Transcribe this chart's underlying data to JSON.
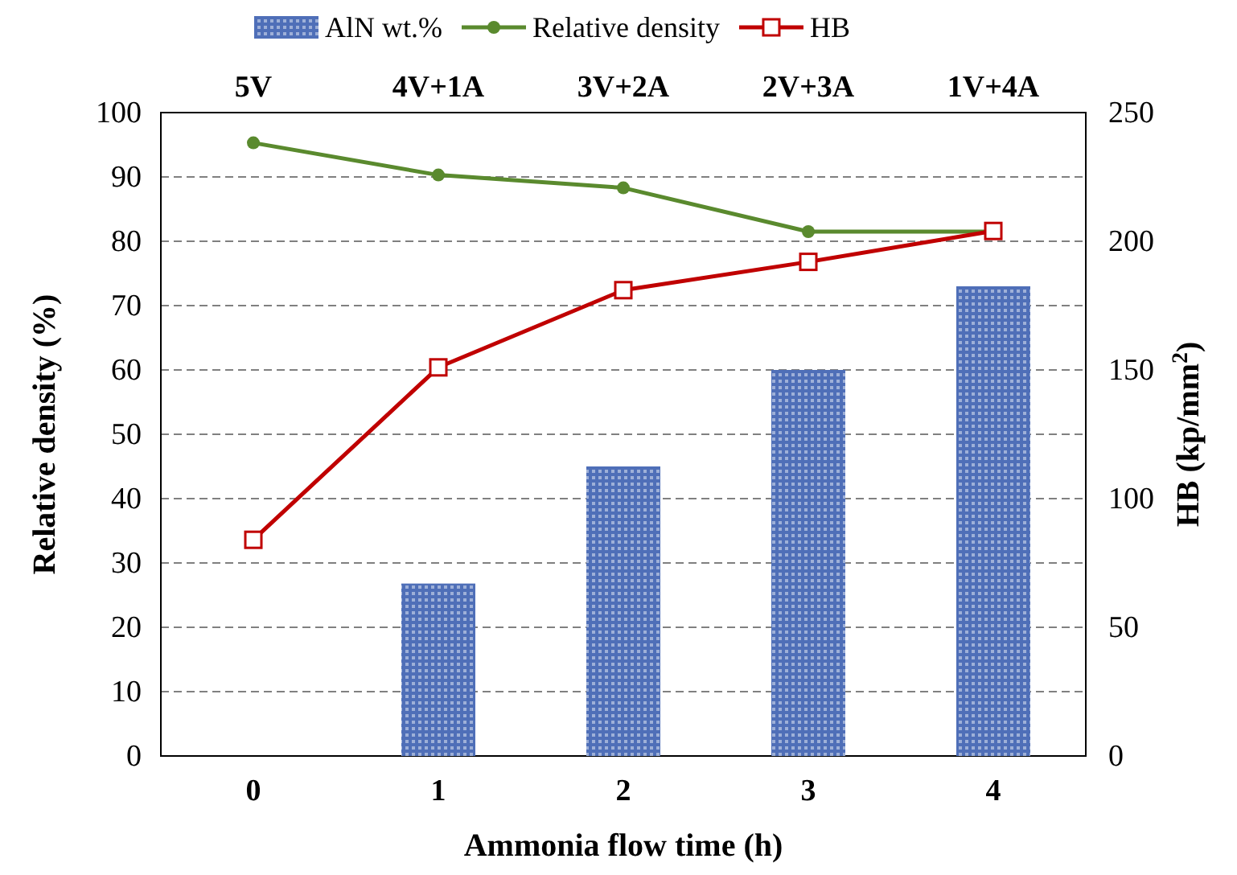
{
  "chart_data": {
    "type": "bar",
    "xlabel": "Ammonia flow time (h)",
    "ylabel": "Relative density (%)",
    "y2label": "HB (kp/mm$^{2}$)",
    "categories": [
      "0",
      "1",
      "2",
      "3",
      "4"
    ],
    "ylim": [
      0,
      100
    ],
    "yticks": [
      0,
      10,
      20,
      30,
      40,
      50,
      60,
      70,
      80,
      90,
      100
    ],
    "y2lim": [
      0,
      250
    ],
    "y2ticks": [
      0,
      50,
      100,
      150,
      200,
      250
    ],
    "grid": "y",
    "legend": "top",
    "series": [
      {
        "name": "AlN wt.%",
        "color": "#4f6fb8",
        "values": [
          0,
          26.8,
          45,
          60,
          73
        ]
      },
      {
        "name": "Relative density",
        "type": "line",
        "color": "#5a8a2e",
        "marker": "circle",
        "values": [
          95.3,
          90.3,
          88.3,
          81.5,
          81.5
        ]
      },
      {
        "name": "HB",
        "type": "line",
        "axis": "y2",
        "color": "#c00000",
        "marker": "square",
        "values": [
          84,
          151,
          181,
          192,
          204
        ]
      }
    ],
    "annotations": [
      "5V",
      "4V+1A",
      "3V+2A",
      "2V+3A",
      "1V+4A"
    ]
  }
}
